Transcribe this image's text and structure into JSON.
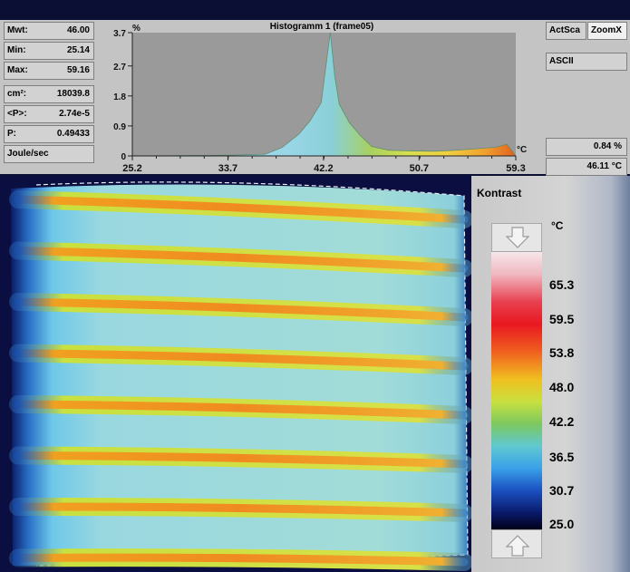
{
  "stats": [
    {
      "label": "Mwt:",
      "value": "46.00"
    },
    {
      "label": "Min:",
      "value": "25.14"
    },
    {
      "label": "Max:",
      "value": "59.16"
    },
    {
      "label": "cm²:",
      "value": "18039.8"
    },
    {
      "label": "<P>:",
      "value": "2.74e-5"
    },
    {
      "label": "P:",
      "value": "0.49433"
    }
  ],
  "units_label": "Joule/sec",
  "histogram": {
    "title": "Histogramm 1 (frame05)",
    "y_unit": "%",
    "x_unit": "°C",
    "y_ticks": [
      "3.7",
      "2.7",
      "1.8",
      "0.9",
      "0"
    ],
    "x_ticks": [
      "25.2",
      "33.7",
      "42.2",
      "50.7",
      "59.3"
    ]
  },
  "buttons": {
    "actsca": "ActSca",
    "zoomx": "ZoomX",
    "ascii": "ASCII"
  },
  "readouts": {
    "percent": "0.84 %",
    "temperature": "46.11 °C"
  },
  "contrast": {
    "title": "Kontrast",
    "unit": "°C",
    "labels": [
      "65.3",
      "59.5",
      "53.8",
      "48.0",
      "42.2",
      "36.5",
      "30.7",
      "25.0"
    ]
  },
  "chart_data": {
    "type": "area",
    "title": "Histogramm 1 (frame05)",
    "xlabel": "°C",
    "ylabel": "%",
    "xlim": [
      25.2,
      59.3
    ],
    "ylim": [
      0,
      3.7
    ],
    "x": [
      25.2,
      33.7,
      37.0,
      38.5,
      40.0,
      41.0,
      42.0,
      42.8,
      43.2,
      43.6,
      44.5,
      45.5,
      46.5,
      48.0,
      50.0,
      52.0,
      54.0,
      56.0,
      57.5,
      58.5,
      59.3
    ],
    "y": [
      0.0,
      0.02,
      0.05,
      0.25,
      0.65,
      1.05,
      1.6,
      3.7,
      2.4,
      1.55,
      1.0,
      0.6,
      0.28,
      0.17,
      0.15,
      0.14,
      0.17,
      0.22,
      0.26,
      0.35,
      0.0
    ]
  }
}
